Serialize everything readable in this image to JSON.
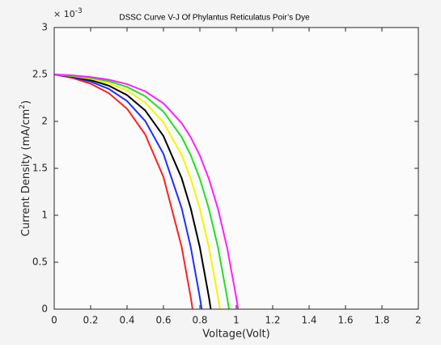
{
  "chart_data": {
    "type": "line",
    "title": "DSSC Curve V-J Of Phylantus Reticulatus Poir’s Dye",
    "xlabel": "Voltage(Volt)",
    "ylabel": {
      "text": "Current Density (mA/cm",
      "superscript": "2",
      "suffix": ")"
    },
    "y_exponent": {
      "base": "× 10",
      "power": "-3"
    },
    "xlim": [
      0,
      2
    ],
    "ylim": [
      0,
      0.003
    ],
    "xticks": [
      0,
      0.2,
      0.4,
      0.6,
      0.8,
      1,
      1.2,
      1.4,
      1.6,
      1.8,
      2
    ],
    "yticks": [
      {
        "value": 0,
        "label": "0"
      },
      {
        "value": 0.0005,
        "label": "0.5"
      },
      {
        "value": 0.001,
        "label": "1"
      },
      {
        "value": 0.0015,
        "label": "1.5"
      },
      {
        "value": 0.002,
        "label": "2"
      },
      {
        "value": 0.0025,
        "label": "2.5"
      },
      {
        "value": 0.003,
        "label": "3"
      }
    ],
    "series": [
      {
        "color": "#ff2020",
        "x": [
          0,
          0.1,
          0.2,
          0.3,
          0.4,
          0.5,
          0.6,
          0.7,
          0.75,
          0.76
        ],
        "values": [
          0.0025,
          0.002463,
          0.002402,
          0.002301,
          0.002135,
          0.00186,
          0.001408,
          0.000663,
          0.000125,
          0
        ]
      },
      {
        "color": "#1f2fff",
        "x": [
          0,
          0.1,
          0.2,
          0.3,
          0.4,
          0.5,
          0.6,
          0.7,
          0.75,
          0.8,
          0.81
        ],
        "values": [
          0.0025,
          0.002471,
          0.002424,
          0.002346,
          0.002217,
          0.002004,
          0.001654,
          0.001076,
          0.00066,
          0.000124,
          0
        ]
      },
      {
        "color": "#000000",
        "x": [
          0,
          0.1,
          0.2,
          0.3,
          0.4,
          0.5,
          0.6,
          0.7,
          0.75,
          0.8,
          0.85,
          0.86
        ],
        "values": [
          0.0025,
          0.002478,
          0.002441,
          0.00238,
          0.00228,
          0.002116,
          0.001844,
          0.001396,
          0.001072,
          0.000657,
          0.000124,
          0
        ]
      },
      {
        "color": "#f5f500",
        "x": [
          0,
          0.1,
          0.2,
          0.3,
          0.4,
          0.5,
          0.6,
          0.7,
          0.75,
          0.8,
          0.85,
          0.9,
          0.91
        ],
        "values": [
          0.0025,
          0.002483,
          0.002454,
          0.002407,
          0.002329,
          0.002201,
          0.00199,
          0.001642,
          0.001391,
          0.001069,
          0.000655,
          0.000124,
          0
        ]
      },
      {
        "color": "#22e022",
        "x": [
          0,
          0.1,
          0.2,
          0.3,
          0.4,
          0.5,
          0.6,
          0.7,
          0.75,
          0.8,
          0.85,
          0.9,
          0.95,
          0.96
        ],
        "values": [
          0.0025,
          0.002487,
          0.002464,
          0.002428,
          0.002367,
          0.002268,
          0.002104,
          0.001834,
          0.001639,
          0.001388,
          0.001066,
          0.000654,
          0.000122,
          0
        ]
      },
      {
        "color": "#ff20ff",
        "x": [
          0,
          0.1,
          0.2,
          0.3,
          0.4,
          0.5,
          0.6,
          0.7,
          0.75,
          0.8,
          0.85,
          0.9,
          0.95,
          1,
          1.01
        ],
        "values": [
          0.0025,
          0.00249,
          0.002472,
          0.002444,
          0.002397,
          0.00232,
          0.002192,
          0.001982,
          0.00183,
          0.001636,
          0.001386,
          0.001065,
          0.000652,
          0.000123,
          0
        ]
      }
    ]
  }
}
